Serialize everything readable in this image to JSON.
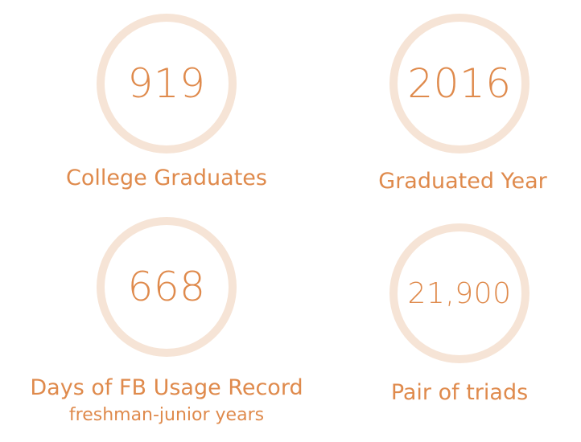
{
  "stats": [
    {
      "value": "919",
      "label": "College Graduates",
      "sublabel": ""
    },
    {
      "value": "2016",
      "label": "Graduated Year",
      "sublabel": ""
    },
    {
      "value": "668",
      "label": "Days of FB Usage Record",
      "sublabel": "freshman-junior years"
    },
    {
      "value": "21,900",
      "label": "Pair of triads",
      "sublabel": ""
    }
  ],
  "colors": {
    "text": "#df8a4c",
    "ring": "#f6e4d6"
  }
}
